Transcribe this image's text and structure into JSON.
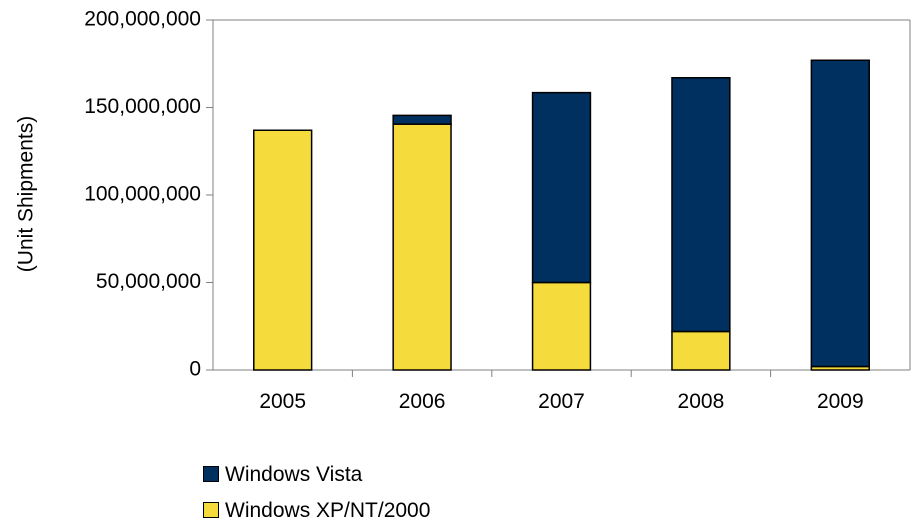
{
  "chart_data": {
    "type": "bar",
    "stacked": true,
    "categories": [
      "2005",
      "2006",
      "2007",
      "2008",
      "2009"
    ],
    "series": [
      {
        "name": "Windows XP/NT/2000",
        "color": "#f5dc3c",
        "values": [
          137000000,
          140500000,
          50000000,
          22000000,
          2000000
        ]
      },
      {
        "name": "Windows Vista",
        "color": "#00305f",
        "values": [
          0,
          5000000,
          108500000,
          145000000,
          175000000
        ]
      }
    ],
    "ylabel": "(Unit Shipments)",
    "xlabel": "",
    "ylim": [
      0,
      200000000
    ],
    "yticks": [
      0,
      50000000,
      100000000,
      150000000,
      200000000
    ],
    "ytick_labels": [
      "0",
      "50,000,000",
      "100,000,000",
      "150,000,000",
      "200,000,000"
    ],
    "legend": {
      "position": "bottom",
      "items": [
        {
          "label": "Windows Vista",
          "color": "#00305f"
        },
        {
          "label": "Windows XP/NT/2000",
          "color": "#f5dc3c"
        }
      ]
    },
    "grid": false
  }
}
